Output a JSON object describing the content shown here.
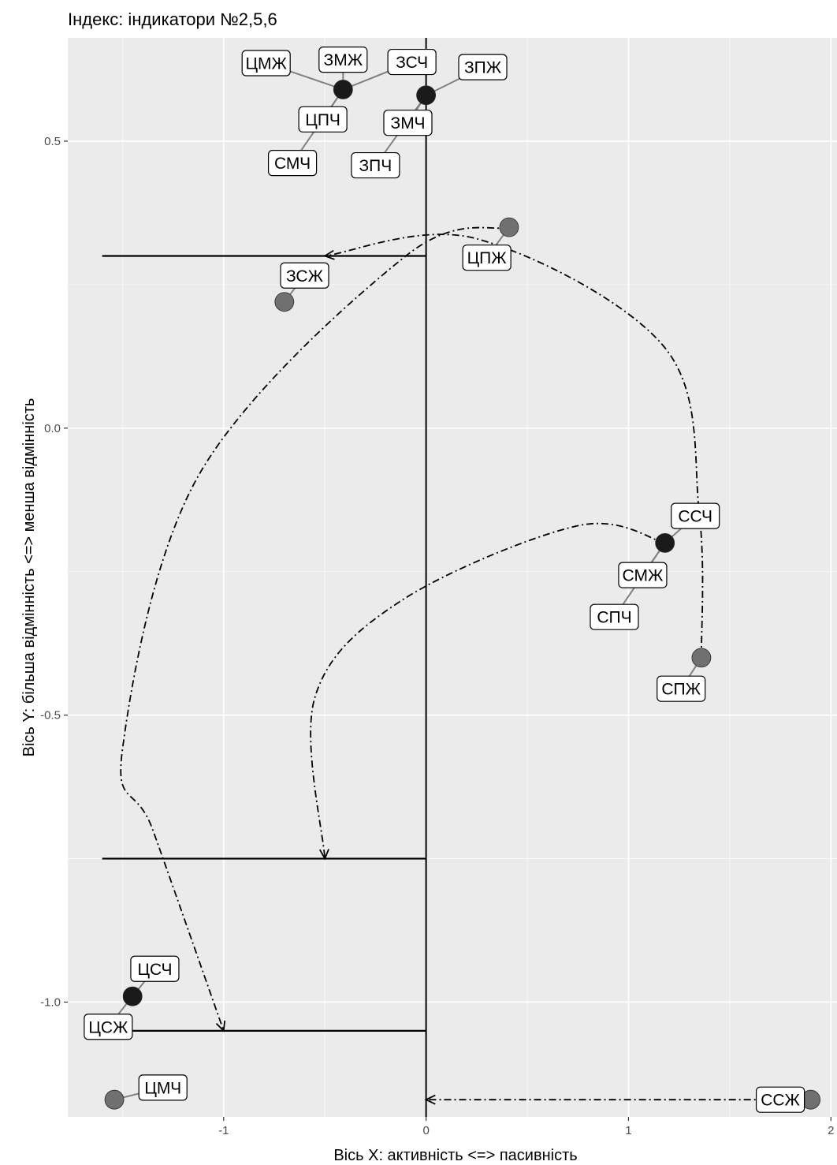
{
  "chart_data": {
    "type": "scatter",
    "title": "Індекс: індикатори №2,5,6",
    "xlabel": "Вісь X: активність <=> пасивність",
    "ylabel": "Вісь Y: більша відмінність <=> менша відмінність",
    "xlim": [
      -1.77,
      2.03
    ],
    "ylim": [
      -1.2,
      0.68
    ],
    "x_ticks": [
      {
        "value": -1,
        "label": "-1"
      },
      {
        "value": 0,
        "label": "0"
      },
      {
        "value": 1,
        "label": "1"
      },
      {
        "value": 2,
        "label": "2"
      }
    ],
    "y_ticks": [
      {
        "value": 0.5,
        "label": "0.5"
      },
      {
        "value": 0.0,
        "label": "0.0"
      },
      {
        "value": -0.5,
        "label": "-0.5"
      },
      {
        "value": -1.0,
        "label": "-1.0"
      }
    ],
    "grid": true,
    "colors": {
      "panel": "#ebebeb",
      "grid_major": "#ffffff",
      "point_dark": "#1a1a1a",
      "point_gray": "#707070",
      "leader": "#808080"
    },
    "points": [
      {
        "x": -0.41,
        "y": 0.59,
        "tone": "dark"
      },
      {
        "x": 0.0,
        "y": 0.58,
        "tone": "dark"
      },
      {
        "x": 0.41,
        "y": 0.35,
        "tone": "gray"
      },
      {
        "x": -0.7,
        "y": 0.22,
        "tone": "gray"
      },
      {
        "x": 1.18,
        "y": -0.2,
        "tone": "dark"
      },
      {
        "x": 1.36,
        "y": -0.4,
        "tone": "gray"
      },
      {
        "x": -1.45,
        "y": -0.99,
        "tone": "dark"
      },
      {
        "x": -1.54,
        "y": -1.17,
        "tone": "gray"
      },
      {
        "x": 1.9,
        "y": -1.17,
        "tone": "gray"
      }
    ],
    "labels": [
      {
        "text": "ЦМЖ",
        "x": -0.79,
        "y": 0.636,
        "px": -0.41,
        "py": 0.59
      },
      {
        "text": "ЗМЖ",
        "x": -0.41,
        "y": 0.642,
        "px": -0.41,
        "py": 0.59
      },
      {
        "text": "ЗСЧ",
        "x": -0.07,
        "y": 0.638,
        "px": -0.41,
        "py": 0.59
      },
      {
        "text": "ЗПЖ",
        "x": 0.28,
        "y": 0.629,
        "px": 0.0,
        "py": 0.58
      },
      {
        "text": "ЦПЧ",
        "x": -0.51,
        "y": 0.538,
        "px": -0.41,
        "py": 0.59
      },
      {
        "text": "ЗМЧ",
        "x": -0.09,
        "y": 0.532,
        "px": 0.0,
        "py": 0.58
      },
      {
        "text": "СМЧ",
        "x": -0.66,
        "y": 0.462,
        "px": -0.41,
        "py": 0.59
      },
      {
        "text": "ЗПЧ",
        "x": -0.25,
        "y": 0.458,
        "px": 0.0,
        "py": 0.58
      },
      {
        "text": "ЦПЖ",
        "x": 0.3,
        "y": 0.297,
        "px": 0.41,
        "py": 0.35
      },
      {
        "text": "ЗСЖ",
        "x": -0.6,
        "y": 0.266,
        "px": -0.7,
        "py": 0.22
      },
      {
        "text": "ССЧ",
        "x": 1.33,
        "y": -0.153,
        "px": 1.18,
        "py": -0.2
      },
      {
        "text": "СМЖ",
        "x": 1.07,
        "y": -0.256,
        "px": 1.18,
        "py": -0.2
      },
      {
        "text": "СПЧ",
        "x": 0.93,
        "y": -0.329,
        "px": 1.18,
        "py": -0.2
      },
      {
        "text": "СПЖ",
        "x": 1.26,
        "y": -0.454,
        "px": 1.36,
        "py": -0.4
      },
      {
        "text": "ЦСЧ",
        "x": -1.34,
        "y": -0.942,
        "px": -1.45,
        "py": -0.99
      },
      {
        "text": "ЦСЖ",
        "x": -1.57,
        "y": -1.043,
        "px": -1.45,
        "py": -0.99
      },
      {
        "text": "ЦМЧ",
        "x": -1.3,
        "y": -1.149,
        "px": -1.54,
        "py": -1.17
      },
      {
        "text": "ССЖ",
        "x": 1.75,
        "y": -1.17,
        "px": 1.9,
        "py": -1.17
      }
    ],
    "vertical_line_x": 0,
    "reference_segments": [
      {
        "y": 0.3,
        "x_from": -1.6,
        "x_to": 0
      },
      {
        "y": -0.75,
        "x_from": -1.6,
        "x_to": 0
      },
      {
        "y": -1.05,
        "x_from": -1.6,
        "x_to": 0
      }
    ],
    "trajectories": [
      {
        "from": [
          0.41,
          0.35
        ],
        "to": [
          -1.0,
          -1.05
        ],
        "via": [
          [
            -0.1,
            0.3
          ],
          [
            -1.12,
            -0.08
          ],
          [
            -1.5,
            -0.56
          ],
          [
            -1.35,
            -0.7
          ]
        ]
      },
      {
        "from": [
          1.36,
          -0.4
        ],
        "to": [
          -0.5,
          0.3
        ],
        "via": [
          [
            1.35,
            -0.15
          ],
          [
            1.18,
            0.14
          ],
          [
            0.25,
            0.33
          ]
        ]
      },
      {
        "from": [
          1.18,
          -0.2
        ],
        "to": [
          -0.5,
          -0.75
        ],
        "via": [
          [
            0.75,
            -0.17
          ],
          [
            -0.12,
            -0.3
          ],
          [
            -0.55,
            -0.47
          ]
        ]
      },
      {
        "from": [
          1.9,
          -1.17
        ],
        "to": [
          0.0,
          -1.17
        ],
        "via": []
      }
    ]
  }
}
